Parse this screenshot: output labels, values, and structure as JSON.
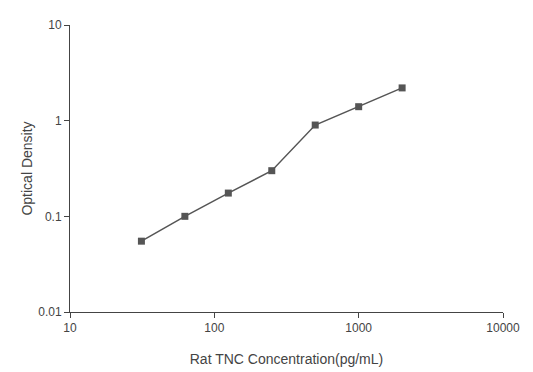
{
  "chart_data": {
    "type": "line",
    "x": [
      31.25,
      62.5,
      125,
      250,
      500,
      1000,
      2000
    ],
    "values": [
      0.055,
      0.1,
      0.175,
      0.3,
      0.9,
      1.4,
      2.2
    ],
    "xlabel": "Rat TNC Concentration(pg/mL)",
    "ylabel": "Optical Density",
    "xlim": [
      10,
      10000
    ],
    "ylim": [
      0.01,
      10
    ],
    "xticks": [
      10,
      100,
      1000,
      10000
    ],
    "yticks": [
      0.01,
      0.1,
      1,
      10
    ],
    "log": true,
    "grid": false,
    "color": "#555555",
    "marker": "square"
  }
}
